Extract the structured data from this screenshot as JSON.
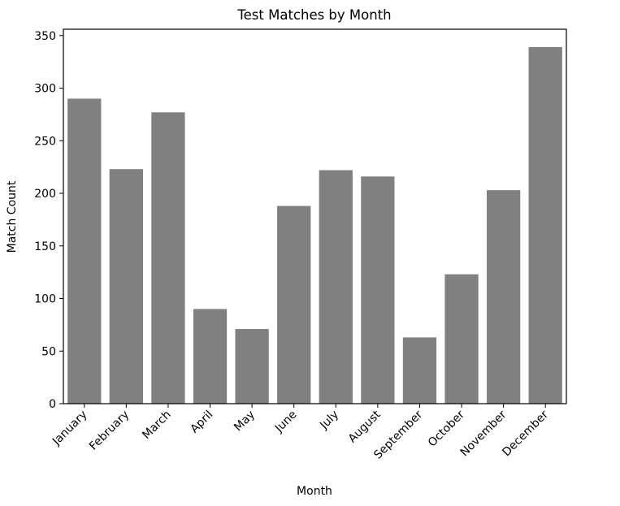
{
  "chart_data": {
    "type": "bar",
    "title": "Test Matches by Month",
    "xlabel": "Month",
    "ylabel": "Match Count",
    "categories": [
      "January",
      "February",
      "March",
      "April",
      "May",
      "June",
      "July",
      "August",
      "September",
      "October",
      "November",
      "December"
    ],
    "values": [
      290,
      223,
      277,
      90,
      71,
      188,
      222,
      216,
      63,
      123,
      203,
      339
    ],
    "ylim": [
      0,
      356
    ],
    "yticks": [
      0,
      50,
      100,
      150,
      200,
      250,
      300,
      350
    ],
    "grid": false,
    "bar_color": "#808080"
  }
}
